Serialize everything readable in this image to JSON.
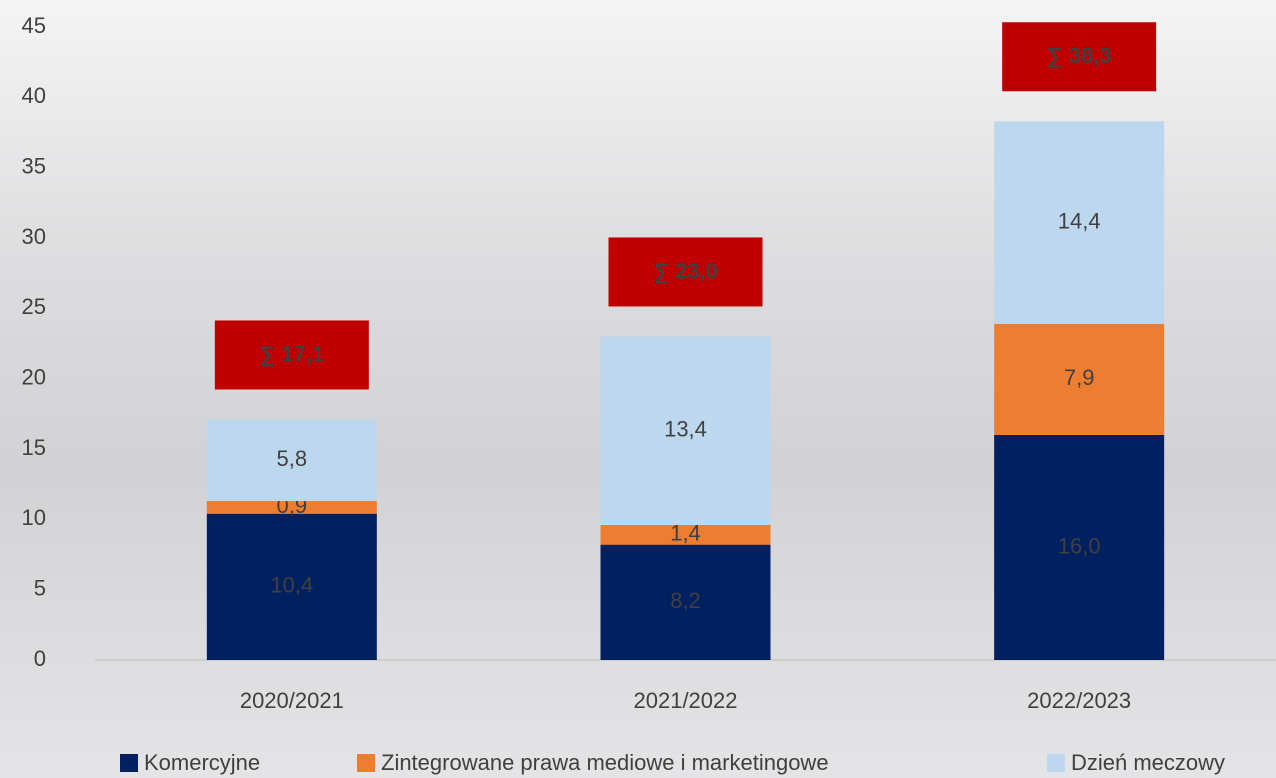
{
  "chart_data": {
    "type": "stacked-bar",
    "categories": [
      "2020/2021",
      "2021/2022",
      "2022/2023"
    ],
    "series": [
      {
        "name": "Komercyjne",
        "color": "#002060",
        "values": [
          10.4,
          8.2,
          16.0
        ],
        "value_labels": [
          "10,4",
          "8,2",
          "16,0"
        ],
        "label_color": "#ffffff"
      },
      {
        "name": "Zintegrowane prawa mediowe i marketingowe",
        "color": "#ED7D31",
        "values": [
          0.9,
          1.4,
          7.9
        ],
        "value_labels": [
          "0,9",
          "1,4",
          "7,9"
        ],
        "label_color": "#404040"
      },
      {
        "name": "Dzień meczowy",
        "color": "#BDD7EE",
        "values": [
          5.8,
          13.4,
          14.4
        ],
        "value_labels": [
          "5,8",
          "13,4",
          "14,4"
        ],
        "label_color": "#404040"
      }
    ],
    "totals": [
      17.1,
      23.0,
      38.3
    ],
    "total_labels": [
      "∑ 17,1",
      "∑ 23,0",
      "∑ 38,3"
    ],
    "total_color": "#C00000",
    "ylim": [
      0,
      45
    ],
    "yticks": [
      0,
      5,
      10,
      15,
      20,
      25,
      30,
      35,
      40,
      45
    ],
    "grid": false,
    "legend": "bottom"
  }
}
